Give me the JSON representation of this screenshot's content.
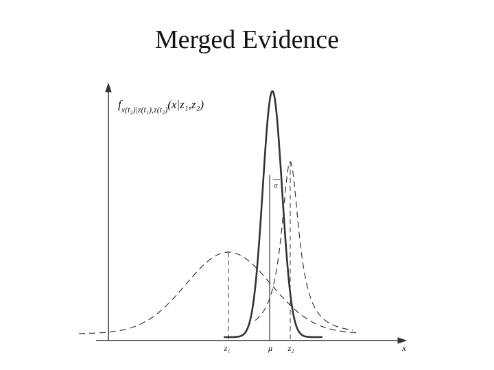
{
  "title": "Merged Evidence",
  "figure": {
    "y_label": {
      "f": "f",
      "sub": "x(t₂)|z(t₁),z(t₂)",
      "args": "(x|z₁,z₂)"
    },
    "x_label": "x",
    "z1": "z₁",
    "mu": "μ",
    "z2": "z₂",
    "sigma": "σ"
  }
}
